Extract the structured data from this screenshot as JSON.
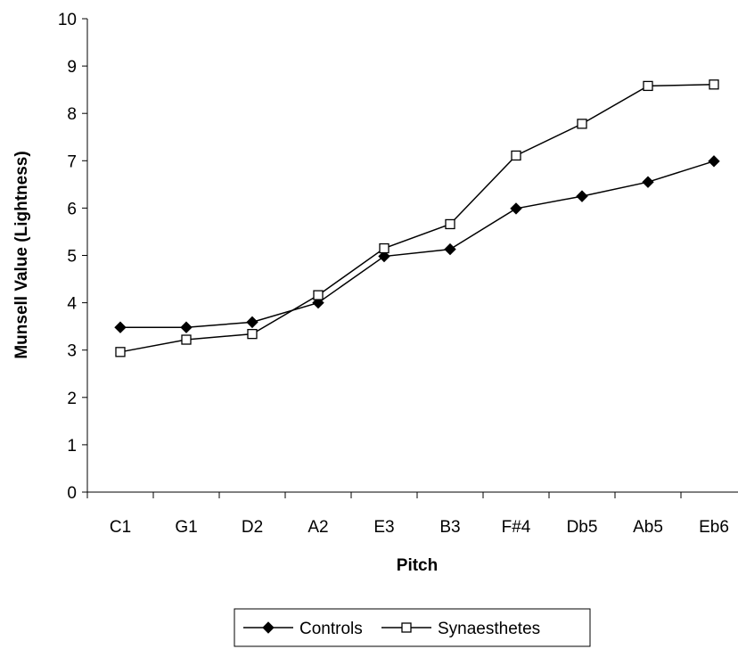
{
  "chart_data": {
    "type": "line",
    "title": "",
    "xlabel": "Pitch",
    "ylabel": "Munsell Value (Lightness)",
    "categories": [
      "C1",
      "G1",
      "D2",
      "A2",
      "E3",
      "B3",
      "F#4",
      "Db5",
      "Ab5",
      "Eb6"
    ],
    "ylim": [
      0,
      10
    ],
    "yticks": [
      0,
      1,
      2,
      3,
      4,
      5,
      6,
      7,
      8,
      9,
      10
    ],
    "grid": false,
    "legend_position": "bottom",
    "series": [
      {
        "name": "Controls",
        "marker": "filled-diamond",
        "color": "#000000",
        "values": [
          3.48,
          3.48,
          3.59,
          4.0,
          4.98,
          5.13,
          5.99,
          6.25,
          6.55,
          6.99
        ]
      },
      {
        "name": "Synaesthetes",
        "marker": "open-square",
        "color": "#000000",
        "values": [
          2.96,
          3.22,
          3.34,
          4.16,
          5.15,
          5.66,
          7.11,
          7.78,
          8.58,
          8.61
        ]
      }
    ]
  }
}
